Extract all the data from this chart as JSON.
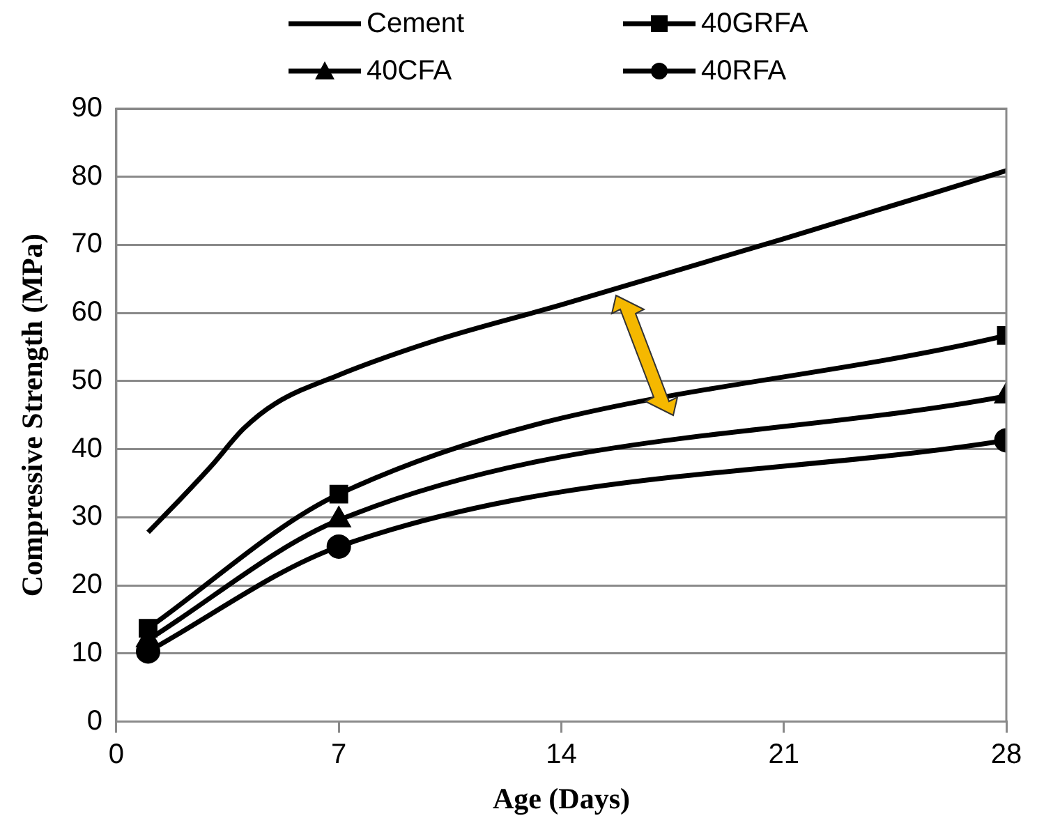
{
  "chart_data": {
    "type": "line",
    "xlabel": "Age (Days)",
    "ylabel": "Compressive Strength (MPa)",
    "xlim": [
      0,
      28
    ],
    "xticks": [
      0,
      7,
      14,
      21,
      28
    ],
    "ylim": [
      0,
      90
    ],
    "yticks": [
      0,
      10,
      20,
      30,
      40,
      50,
      60,
      70,
      80,
      90
    ],
    "grid": "y",
    "legend": "top",
    "line_style": "solid",
    "series": [
      {
        "name": "Cement",
        "color": "#000000",
        "marker": "none",
        "x": [
          1,
          2,
          3,
          4,
          5,
          7,
          10,
          14,
          21,
          28
        ],
        "values": [
          27.8,
          32.6,
          37.6,
          43.0,
          46.7,
          50.9,
          55.9,
          61.2,
          70.9,
          80.9
        ]
      },
      {
        "name": "40GRFA",
        "color": "#000000",
        "marker": "square",
        "x": [
          1,
          7,
          28
        ],
        "values": [
          13.7,
          33.4,
          56.7
        ]
      },
      {
        "name": "40CFA",
        "color": "#000000",
        "marker": "triangle",
        "x": [
          1,
          7,
          28
        ],
        "values": [
          12,
          29.6,
          47.8
        ]
      },
      {
        "name": "40RFA",
        "color": "#000000",
        "marker": "circle",
        "x": [
          1,
          7,
          28
        ],
        "values": [
          10.3,
          25.7,
          41.3
        ]
      }
    ]
  }
}
